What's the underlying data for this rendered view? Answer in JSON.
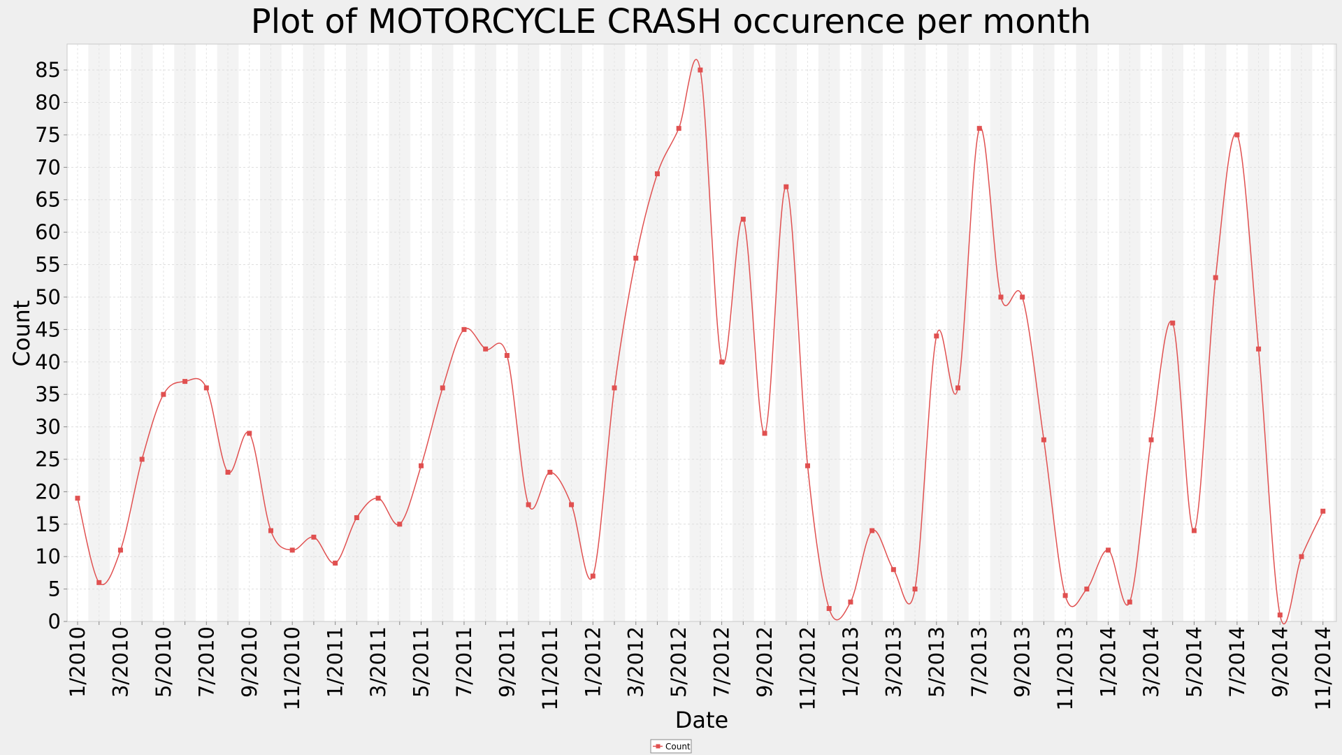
{
  "chart_data": {
    "type": "line",
    "title": "Plot of MOTORCYCLE CRASH occurence per month",
    "xlabel": "Date",
    "ylabel": "Count",
    "ylim": [
      0,
      89
    ],
    "y_ticks": [
      0,
      5,
      10,
      15,
      20,
      25,
      30,
      35,
      40,
      45,
      50,
      55,
      60,
      65,
      70,
      75,
      80,
      85
    ],
    "grid": true,
    "legend_position": "bottom-center",
    "x": [
      "1/2010",
      "2/2010",
      "3/2010",
      "4/2010",
      "5/2010",
      "6/2010",
      "7/2010",
      "8/2010",
      "9/2010",
      "10/2010",
      "11/2010",
      "12/2010",
      "1/2011",
      "2/2011",
      "3/2011",
      "4/2011",
      "5/2011",
      "6/2011",
      "7/2011",
      "8/2011",
      "9/2011",
      "10/2011",
      "11/2011",
      "12/2011",
      "1/2012",
      "2/2012",
      "3/2012",
      "4/2012",
      "5/2012",
      "6/2012",
      "7/2012",
      "8/2012",
      "9/2012",
      "10/2012",
      "11/2012",
      "12/2012",
      "1/2013",
      "2/2013",
      "3/2013",
      "4/2013",
      "5/2013",
      "6/2013",
      "7/2013",
      "8/2013",
      "9/2013",
      "10/2013",
      "11/2013",
      "12/2013",
      "1/2014",
      "2/2014",
      "3/2014",
      "4/2014",
      "5/2014",
      "6/2014",
      "7/2014",
      "8/2014",
      "9/2014",
      "10/2014",
      "11/2014"
    ],
    "x_tick_labels": [
      "1/2010",
      "3/2010",
      "5/2010",
      "7/2010",
      "9/2010",
      "11/2010",
      "1/2011",
      "3/2011",
      "5/2011",
      "7/2011",
      "9/2011",
      "11/2011",
      "1/2012",
      "3/2012",
      "5/2012",
      "7/2012",
      "9/2012",
      "11/2012",
      "1/2013",
      "3/2013",
      "5/2013",
      "7/2013",
      "9/2013",
      "11/2013",
      "1/2014",
      "3/2014",
      "5/2014",
      "7/2014",
      "9/2014",
      "11/2014"
    ],
    "series": [
      {
        "name": "Count",
        "color": "#e05050",
        "values": [
          19,
          6,
          11,
          25,
          35,
          37,
          36,
          23,
          29,
          14,
          11,
          13,
          9,
          16,
          19,
          15,
          24,
          36,
          45,
          42,
          41,
          18,
          23,
          18,
          7,
          36,
          56,
          69,
          76,
          85,
          40,
          62,
          29,
          67,
          24,
          2,
          3,
          14,
          8,
          5,
          44,
          36,
          76,
          50,
          50,
          28,
          4,
          5,
          11,
          3,
          28,
          46,
          14,
          53,
          75,
          42,
          1,
          10,
          17
        ]
      }
    ]
  }
}
